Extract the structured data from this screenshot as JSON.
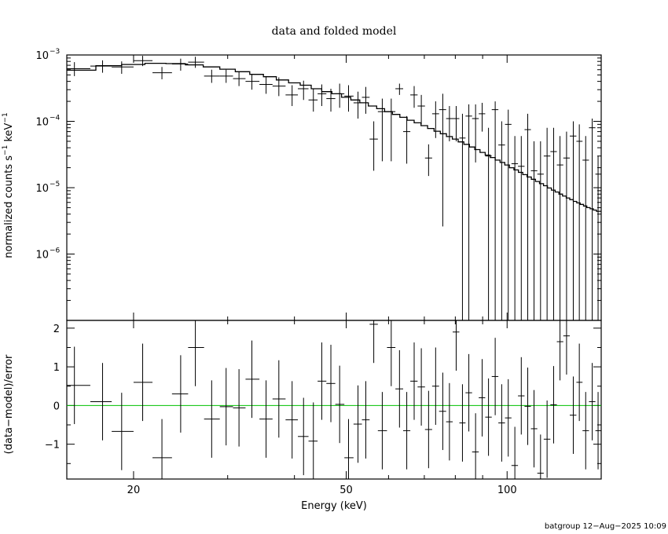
{
  "chart_data": [
    {
      "type": "scatter",
      "title": "data and folded model",
      "xlabel": "Energy (keV)",
      "ylabel": "normalized counts s⁻¹ keV⁻¹",
      "xscale": "log",
      "yscale": "log",
      "xlim": [
        15,
        150
      ],
      "ylim": [
        1e-07,
        0.001
      ],
      "x_tick_labels": [
        "20",
        "50",
        "100"
      ],
      "x_ticks": [
        20,
        50,
        100
      ],
      "y_ticks": [
        0.001,
        0.0001,
        1e-05,
        1e-06
      ],
      "y_tick_labels": [
        {
          "base": "10",
          "exp": "−3"
        },
        {
          "base": "10",
          "exp": "−4"
        },
        {
          "base": "10",
          "exp": "−5"
        },
        {
          "base": "10",
          "exp": "−6"
        }
      ],
      "series": [
        {
          "kind": "data-with-errors",
          "x": [
            15.5,
            17.5,
            19.0,
            20.8,
            22.6,
            24.5,
            26.1,
            28.0,
            29.8,
            31.5,
            33.3,
            35.4,
            37.4,
            39.6,
            41.6,
            43.4,
            45.0,
            46.8,
            48.6,
            50.5,
            52.6,
            54.4,
            56.3,
            58.4,
            60.7,
            62.9,
            64.9,
            67.0,
            69.1,
            71.3,
            73.5,
            75.8,
            78.0,
            80.3,
            82.5,
            84.8,
            87.3,
            89.8,
            92.3,
            95.0,
            97.7,
            100.5,
            103.4,
            106.3,
            109.3,
            112.3,
            115.5,
            118.8,
            122.2,
            125.6,
            129.2,
            133.0,
            136.5,
            140.3,
            144.3,
            148.0
          ],
          "y": [
            0.00062,
            0.00068,
            0.00066,
            0.00082,
            0.00054,
            0.00073,
            0.00078,
            0.00048,
            0.00048,
            0.00044,
            0.0004,
            0.00036,
            0.00034,
            0.00025,
            0.00031,
            0.00021,
            0.00026,
            0.00022,
            0.00026,
            0.00024,
            0.00019,
            0.00023,
            5.4e-05,
            0.00014,
            0.00014,
            0.00031,
            7e-05,
            0.00025,
            0.00017,
            2.8e-05,
            0.00013,
            0.00015,
            0.00011,
            0.00011,
            5.6e-05,
            0.00012,
            0.00011,
            0.00013,
            3e-05,
            0.00015,
            4.4e-05,
            9e-05,
            2.3e-05,
            2.1e-05,
            7.5e-05,
            1.8e-05,
            1.6e-05,
            3e-05,
            3.5e-05,
            2.2e-05,
            2.8e-05,
            6e-05,
            5e-05,
            2.6e-05,
            8e-05,
            1.6e-05
          ],
          "y_lo": [
            0.00048,
            0.00054,
            0.00052,
            0.00068,
            0.00043,
            0.00058,
            0.00064,
            0.00038,
            0.00038,
            0.00034,
            0.0003,
            0.00026,
            0.00024,
            0.00017,
            0.00021,
            0.00014,
            0.00017,
            0.00014,
            0.00016,
            0.00014,
            0.00011,
            0.00013,
            1.8e-05,
            2.5e-05,
            2.5e-05,
            0.00025,
            2.3e-05,
            0.00016,
            9e-05,
            1.5e-05,
            5.6e-05,
            2.6e-06,
            5e-05,
            5e-05,
            1e-07,
            1e-07,
            2.4e-05,
            7e-05,
            1e-07,
            1e-07,
            1e-07,
            1e-07,
            1e-07,
            1e-07,
            1e-07,
            1e-07,
            1e-07,
            1e-07,
            1e-07,
            1e-07,
            1e-07,
            1e-07,
            1e-07,
            1e-07,
            1e-07,
            1e-07
          ],
          "y_hi": [
            0.00078,
            0.00083,
            0.0008,
            0.00097,
            0.00066,
            0.00088,
            0.00094,
            0.0006,
            0.0006,
            0.00056,
            0.00052,
            0.00048,
            0.00046,
            0.00035,
            0.00041,
            0.00031,
            0.00036,
            0.00031,
            0.00037,
            0.00035,
            0.00028,
            0.00033,
            0.0001,
            0.00022,
            0.00022,
            0.00037,
            0.00012,
            0.00034,
            0.00025,
            4.5e-05,
            0.0002,
            0.00026,
            0.00017,
            0.00017,
            0.00013,
            0.00018,
            0.00018,
            0.00019,
            8e-05,
            0.0002,
            0.0001,
            0.00015,
            6e-05,
            6e-05,
            0.00013,
            5e-05,
            5e-05,
            8e-05,
            8e-05,
            6e-05,
            7e-05,
            0.0001,
            9e-05,
            6e-05,
            0.00011,
            3e-05
          ],
          "x_lo": [
            14.6,
            16.6,
            18.2,
            20.0,
            21.7,
            23.6,
            25.3,
            27.1,
            29.0,
            30.7,
            32.4,
            34.4,
            36.4,
            38.5,
            40.6,
            42.5,
            44.2,
            45.9,
            47.7,
            49.6,
            51.6,
            53.5,
            55.3,
            57.3,
            59.6,
            61.8,
            63.9,
            65.9,
            68.0,
            70.2,
            72.4,
            74.6,
            76.9,
            79.1,
            81.4,
            83.6,
            86.0,
            88.5,
            91.0,
            93.6,
            96.3,
            99.1,
            101.9,
            104.8,
            107.8,
            110.8,
            113.9,
            117.1,
            120.5,
            123.9,
            127.4,
            131.0,
            134.8,
            138.4,
            142.3,
            146.3
          ],
          "x_hi": [
            16.6,
            18.2,
            20.0,
            21.7,
            23.6,
            25.3,
            27.1,
            29.0,
            30.7,
            32.4,
            34.4,
            36.4,
            38.5,
            40.6,
            42.5,
            44.2,
            45.9,
            47.7,
            49.6,
            51.6,
            53.5,
            55.3,
            57.3,
            59.6,
            61.8,
            63.9,
            65.9,
            68.0,
            70.2,
            72.4,
            74.6,
            76.9,
            79.1,
            81.4,
            83.6,
            86.0,
            88.5,
            91.0,
            93.6,
            96.3,
            99.1,
            101.9,
            104.8,
            107.8,
            110.8,
            113.9,
            117.1,
            120.5,
            123.9,
            127.4,
            131.0,
            134.8,
            138.4,
            142.3,
            146.3,
            150.0
          ]
        },
        {
          "kind": "model-step",
          "x_edges": [
            15.0,
            17.0,
            19.0,
            21.0,
            23.0,
            25.0,
            27.0,
            29.0,
            31.0,
            33.0,
            35.0,
            37.0,
            39.0,
            41.0,
            43.0,
            45.0,
            47.0,
            49.0,
            51.0,
            53.0,
            55.0,
            57.0,
            59.0,
            61.0,
            63.0,
            65.0,
            67.0,
            69.0,
            71.0,
            73.0,
            75.0,
            77.0,
            79.0,
            81.0,
            83.0,
            85.0,
            87.0,
            89.0,
            91.0,
            93.0,
            95.0,
            97.0,
            99.0,
            101.0,
            103.0,
            105.0,
            107.0,
            109.0,
            111.0,
            113.0,
            115.0,
            117.0,
            119.0,
            121.0,
            123.0,
            125.0,
            127.0,
            129.0,
            131.0,
            133.0,
            135.0,
            137.0,
            139.0,
            141.0,
            143.0,
            145.0,
            147.0,
            150.0
          ],
          "y": [
            0.00059,
            0.00069,
            0.00072,
            0.00075,
            0.00074,
            0.00071,
            0.00066,
            0.00061,
            0.00056,
            0.00051,
            0.00047,
            0.00042,
            0.00038,
            0.00035,
            0.00031,
            0.00028,
            0.00026,
            0.00023,
            0.00021,
            0.00019,
            0.00017,
            0.000155,
            0.00014,
            0.000127,
            0.000115,
            0.000104,
            9.5e-05,
            8.6e-05,
            7.8e-05,
            7.1e-05,
            6.5e-05,
            5.9e-05,
            5.4e-05,
            4.9e-05,
            4.5e-05,
            4.1e-05,
            3.75e-05,
            3.4e-05,
            3.1e-05,
            2.85e-05,
            2.6e-05,
            2.4e-05,
            2.2e-05,
            2e-05,
            1.85e-05,
            1.7e-05,
            1.57e-05,
            1.45e-05,
            1.34e-05,
            1.24e-05,
            1.15e-05,
            1.07e-05,
            9.9e-06,
            9.2e-06,
            8.6e-06,
            8e-06,
            7.5e-06,
            7e-06,
            6.6e-06,
            6.2e-06,
            5.9e-06,
            5.6e-06,
            5.3e-06,
            5e-06,
            4.8e-06,
            4.6e-06,
            4.4e-06
          ]
        }
      ]
    },
    {
      "type": "scatter",
      "xlabel": "Energy (keV)",
      "ylabel": "(data−model)/error",
      "xscale": "log",
      "xlim": [
        15,
        150
      ],
      "ylim": [
        -1.9,
        2.2
      ],
      "x_ticks": [
        20,
        50,
        100
      ],
      "x_tick_labels": [
        "20",
        "50",
        "100"
      ],
      "y_ticks": [
        2,
        1,
        0,
        -1
      ],
      "y_tick_labels": [
        "2",
        "1",
        "0",
        "−1"
      ],
      "zero_line_color": "#00c000",
      "series": [
        {
          "kind": "residuals",
          "x": [
            15.5,
            17.5,
            19.0,
            20.8,
            22.6,
            24.5,
            26.1,
            28.0,
            29.8,
            31.5,
            33.3,
            35.4,
            37.4,
            39.6,
            41.6,
            43.4,
            45.0,
            46.8,
            48.6,
            50.5,
            52.6,
            54.4,
            56.3,
            58.4,
            60.7,
            62.9,
            64.9,
            67.0,
            69.1,
            71.3,
            73.5,
            75.8,
            78.0,
            80.3,
            82.5,
            84.8,
            87.3,
            89.8,
            92.3,
            95.0,
            97.7,
            100.5,
            103.4,
            106.3,
            109.3,
            112.3,
            115.5,
            118.8,
            122.2,
            125.6,
            129.2,
            133.0,
            136.5,
            140.3,
            144.3,
            148.0
          ],
          "y": [
            0.52,
            0.1,
            -0.67,
            0.6,
            -1.35,
            0.3,
            1.5,
            -0.35,
            -0.03,
            -0.06,
            0.68,
            -0.35,
            0.17,
            -0.37,
            -0.8,
            -0.92,
            0.63,
            0.57,
            0.03,
            -1.35,
            -0.48,
            -0.37,
            2.1,
            -0.65,
            1.5,
            0.43,
            -0.65,
            0.63,
            0.48,
            -0.62,
            0.5,
            -0.15,
            -0.42,
            1.9,
            -0.45,
            0.33,
            -1.2,
            0.2,
            -0.3,
            0.75,
            -0.45,
            -0.32,
            -1.55,
            0.25,
            -0.02,
            -0.6,
            -1.75,
            -0.87,
            0.02,
            1.65,
            1.8,
            -0.25,
            0.6,
            -0.65,
            0.1,
            -0.65
          ],
          "err": [
            1.0,
            1.0,
            1.0,
            1.0,
            1.0,
            1.0,
            1.0,
            1.0,
            1.0,
            1.0,
            1.0,
            1.0,
            1.0,
            1.0,
            1.0,
            1.0,
            1.0,
            1.0,
            1.0,
            1.0,
            1.0,
            1.0,
            1.0,
            1.0,
            1.0,
            1.0,
            1.0,
            1.0,
            1.0,
            1.0,
            1.0,
            1.0,
            1.0,
            1.0,
            1.0,
            1.0,
            1.0,
            1.0,
            1.0,
            1.0,
            1.0,
            1.0,
            1.0,
            1.0,
            1.0,
            1.0,
            1.0,
            1.0,
            1.0,
            1.0,
            1.0,
            1.0,
            1.0,
            1.0,
            1.0,
            1.0
          ],
          "x_lo": [
            14.6,
            16.6,
            18.2,
            20.0,
            21.7,
            23.6,
            25.3,
            27.1,
            29.0,
            30.7,
            32.4,
            34.4,
            36.4,
            38.5,
            40.6,
            42.5,
            44.2,
            45.9,
            47.7,
            49.6,
            51.6,
            53.5,
            55.3,
            57.3,
            59.6,
            61.8,
            63.9,
            65.9,
            68.0,
            70.2,
            72.4,
            74.6,
            76.9,
            79.1,
            81.4,
            83.6,
            86.0,
            88.5,
            91.0,
            93.6,
            96.3,
            99.1,
            101.9,
            104.8,
            107.8,
            110.8,
            113.9,
            117.1,
            120.5,
            123.9,
            127.4,
            131.0,
            134.8,
            138.4,
            142.3,
            146.3
          ],
          "x_hi": [
            16.6,
            18.2,
            20.0,
            21.7,
            23.6,
            25.3,
            27.1,
            29.0,
            30.7,
            32.4,
            34.4,
            36.4,
            38.5,
            40.6,
            42.5,
            44.2,
            45.9,
            47.7,
            49.6,
            51.6,
            53.5,
            55.3,
            57.3,
            59.6,
            61.8,
            63.9,
            65.9,
            68.0,
            70.2,
            72.4,
            74.6,
            76.9,
            79.1,
            81.4,
            83.6,
            86.0,
            88.5,
            91.0,
            93.6,
            96.3,
            99.1,
            101.9,
            104.8,
            107.8,
            110.8,
            113.9,
            117.1,
            120.5,
            123.9,
            127.4,
            131.0,
            134.8,
            138.4,
            142.3,
            146.3,
            150.0
          ]
        }
      ]
    }
  ],
  "footer": "batgroup 12−Aug−2025 10:09"
}
